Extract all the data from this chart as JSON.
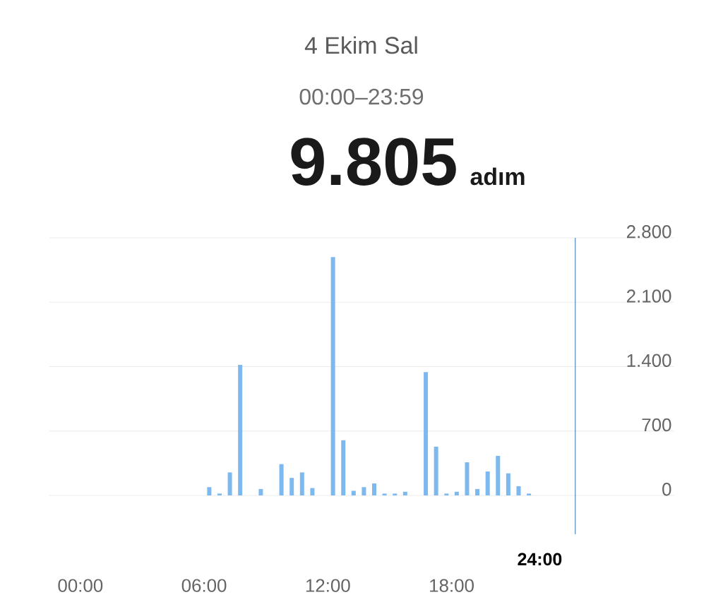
{
  "chart_data": {
    "type": "bar",
    "title": "4 Ekim Sal",
    "subtitle": "00:00–23:59",
    "annotations": [
      "9.805",
      "adım"
    ],
    "x": [
      6.25,
      6.75,
      7.25,
      7.75,
      8.75,
      9.75,
      10.25,
      10.75,
      11.25,
      12.25,
      12.75,
      13.25,
      13.75,
      14.25,
      14.75,
      15.25,
      15.75,
      16.75,
      17.25,
      17.75,
      18.25,
      18.75,
      19.25,
      19.75,
      20.25,
      20.75,
      21.25,
      21.75
    ],
    "values": [
      90,
      20,
      250,
      1420,
      70,
      340,
      190,
      250,
      80,
      2590,
      600,
      50,
      90,
      130,
      20,
      20,
      40,
      1340,
      530,
      20,
      40,
      360,
      70,
      260,
      430,
      240,
      100,
      20
    ],
    "color": "#7db8ee",
    "xlim": [
      -1.5,
      28.8
    ],
    "xticks": [
      {
        "value": 0,
        "label": "00:00"
      },
      {
        "value": 6,
        "label": "06:00"
      },
      {
        "value": 12,
        "label": "12:00"
      },
      {
        "value": 18,
        "label": "18:00"
      }
    ],
    "ylim": [
      0,
      2800
    ],
    "yticks": [
      {
        "value": 0,
        "label": "0"
      },
      {
        "value": 700,
        "label": "700"
      },
      {
        "value": 1400,
        "label": "1.400"
      },
      {
        "value": 2100,
        "label": "2.100"
      },
      {
        "value": 2800,
        "label": "2.800"
      }
    ],
    "grid": "y",
    "ref_lines": [
      {
        "axis": "x",
        "value": 24,
        "label": "24:00",
        "color": "#2a6fb0"
      }
    ]
  }
}
